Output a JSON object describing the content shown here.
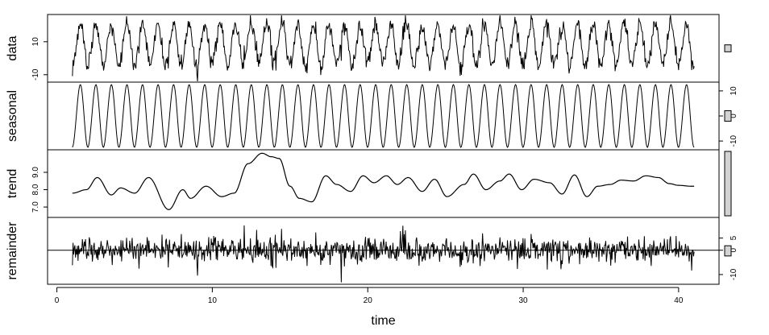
{
  "chart_data": {
    "type": "line",
    "subtype": "stl-decomposition",
    "xlabel": "time",
    "x_range": [
      1,
      41
    ],
    "xlim": [
      -0.6,
      42.6
    ],
    "x_ticks": [
      0,
      10,
      20,
      30,
      40
    ],
    "x_tick_labels": [
      "0",
      "10",
      "20",
      "30",
      "40"
    ],
    "n_points": 1000,
    "seasonal": {
      "period": 1,
      "amplitude": 12.5
    },
    "trend_knots": {
      "x": [
        1,
        1.9,
        2.6,
        3.5,
        4.1,
        5.0,
        5.9,
        7.2,
        8.1,
        8.6,
        9.6,
        10.6,
        11.4,
        12.3,
        13.2,
        13.8,
        14.3,
        15.0,
        15.6,
        16.4,
        17.3,
        18.0,
        18.9,
        19.7,
        20.4,
        21.2,
        21.9,
        22.6,
        23.5,
        24.3,
        25.1,
        26.2,
        26.8,
        27.6,
        28.5,
        29.1,
        29.9,
        30.7,
        31.7,
        32.5,
        33.3,
        34.1,
        34.8,
        35.6,
        36.3,
        37.1,
        37.9,
        38.7,
        39.4,
        40.0,
        40.8
      ],
      "y": [
        7.8,
        8.0,
        8.7,
        7.7,
        8.1,
        7.8,
        8.7,
        6.85,
        8.0,
        7.5,
        8.2,
        7.6,
        7.8,
        9.5,
        10.1,
        9.9,
        9.8,
        8.2,
        7.5,
        7.3,
        8.8,
        8.3,
        7.9,
        8.8,
        8.4,
        8.8,
        8.3,
        8.7,
        7.9,
        8.6,
        7.6,
        8.3,
        8.9,
        8.0,
        8.5,
        8.9,
        8.0,
        8.6,
        8.4,
        7.75,
        8.85,
        7.6,
        8.2,
        8.3,
        8.55,
        8.5,
        8.8,
        8.7,
        8.35,
        8.25,
        8.2
      ]
    },
    "panels": [
      {
        "name": "data",
        "ylabel": "data",
        "ylim": [
          -14.5,
          26.5
        ],
        "yticks": [
          -10,
          10
        ],
        "ytick_labels": [
          "-10",
          "10"
        ],
        "axis_side": "left",
        "scale_bar_range": 4.2
      },
      {
        "name": "seasonal",
        "ylabel": "seasonal",
        "ylim": [
          -13.5,
          13.5
        ],
        "yticks": [
          -10,
          0,
          10
        ],
        "ytick_labels": [
          "-10",
          "0",
          "10"
        ],
        "axis_side": "right",
        "scale_bar_range": 4.2
      },
      {
        "name": "trend",
        "ylabel": "trend",
        "ylim": [
          6.4,
          10.3
        ],
        "yticks": [
          7.0,
          8.0,
          9.0
        ],
        "ytick_labels": [
          "7.0",
          "8.0",
          "9.0"
        ],
        "axis_side": "left",
        "scale_bar_range": 4.2
      },
      {
        "name": "remainder",
        "ylabel": "remainder",
        "ylim": [
          -14,
          13.5
        ],
        "yticks": [
          -10,
          0,
          5
        ],
        "ytick_labels": [
          "-10",
          "0",
          "5"
        ],
        "axis_side": "right",
        "scale_bar_range": 4.2,
        "zero_line": true
      }
    ],
    "grid": false,
    "line_color": "#000000",
    "bar_fill": "#d3d3d3"
  }
}
